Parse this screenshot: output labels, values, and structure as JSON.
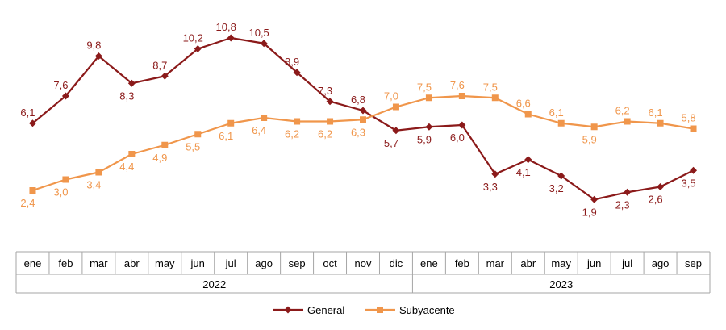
{
  "chart_data": {
    "type": "line",
    "categories": [
      "ene",
      "feb",
      "mar",
      "abr",
      "may",
      "jun",
      "jul",
      "ago",
      "sep",
      "oct",
      "nov",
      "dic",
      "ene",
      "feb",
      "mar",
      "abr",
      "may",
      "jun",
      "jul",
      "ago",
      "sep"
    ],
    "years": [
      {
        "label": "2022",
        "count": 12
      },
      {
        "label": "2023",
        "count": 9
      }
    ],
    "series": [
      {
        "name": "General",
        "color": "#8B1A1A",
        "marker": "diamond",
        "values": [
          6.1,
          7.6,
          9.8,
          8.3,
          8.7,
          10.2,
          10.8,
          10.5,
          8.9,
          7.3,
          6.8,
          5.7,
          5.9,
          6.0,
          3.3,
          4.1,
          3.2,
          1.9,
          2.3,
          2.6,
          3.5
        ],
        "labels": [
          "6,1",
          "7,6",
          "9,8",
          "8,3",
          "8,7",
          "10,2",
          "10,8",
          "10,5",
          "8,9",
          "7,3",
          "6,8",
          "5,7",
          "5,9",
          "6,0",
          "3,3",
          "4,1",
          "3,2",
          "1,9",
          "2,3",
          "2,6",
          "3,5"
        ]
      },
      {
        "name": "Subyacente",
        "color": "#F0964B",
        "marker": "square",
        "values": [
          2.4,
          3.0,
          3.4,
          4.4,
          4.9,
          5.5,
          6.1,
          6.4,
          6.2,
          6.2,
          6.3,
          7.0,
          7.5,
          7.6,
          7.5,
          6.6,
          6.1,
          5.9,
          6.2,
          6.1,
          5.8
        ],
        "labels": [
          "2,4",
          "3,0",
          "3,4",
          "4,4",
          "4,9",
          "5,5",
          "6,1",
          "6,4",
          "6,2",
          "6,2",
          "6,3",
          "7,0",
          "7,5",
          "7,6",
          "7,5",
          "6,6",
          "6,1",
          "5,9",
          "6,2",
          "6,1",
          "5,8"
        ]
      }
    ],
    "ylim": [
      0,
      12
    ],
    "grid": false,
    "legend": "bottom-center"
  }
}
